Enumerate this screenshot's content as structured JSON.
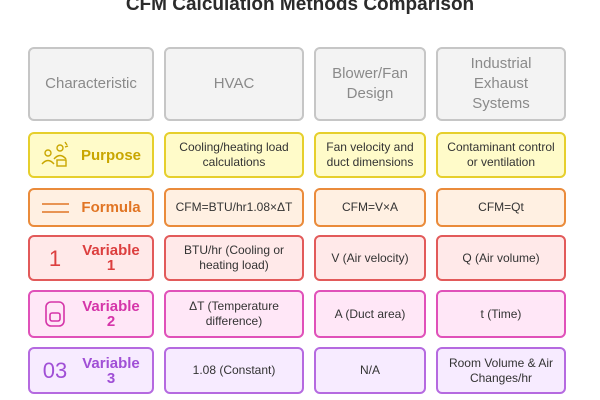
{
  "title": "CFM Calculation Methods Comparison",
  "headers": [
    "Characteristic",
    "HVAC",
    "Blower/Fan Design",
    "Industrial Exhaust Systems"
  ],
  "rows": [
    {
      "label": "Purpose",
      "icon": "people-icon",
      "cells": [
        "Cooling/heating load calculations",
        "Fan velocity and duct dimensions",
        "Contaminant control or ventilation"
      ]
    },
    {
      "label": "Formula",
      "icon": "two-lines-icon",
      "cells": [
        "CFM=BTU/hr1.08×ΔT",
        "CFM=V×A",
        "CFM=Qt"
      ]
    },
    {
      "label": "Variable 1",
      "icon": "number-1-icon",
      "icon_text": "1",
      "cells": [
        "BTU/hr (Cooling or heating load)",
        "V (Air velocity)",
        "Q (Air volume)"
      ]
    },
    {
      "label": "Variable 2",
      "icon": "number-2-icon",
      "cells": [
        "ΔT (Temperature difference)",
        "A (Duct area)",
        "t (Time)"
      ]
    },
    {
      "label": "Variable 3",
      "icon": "number-03-icon",
      "icon_text": "03",
      "cells": [
        "1.08 (Constant)",
        "N/A",
        "Room Volume & Air Changes/hr"
      ]
    }
  ],
  "colors": {
    "purpose": "#e6cf2c",
    "formula": "#ea8b3b",
    "variable1": "#e25a5a",
    "variable2": "#e051b9",
    "variable3": "#b56ae0",
    "header": "#c6c6c6"
  }
}
